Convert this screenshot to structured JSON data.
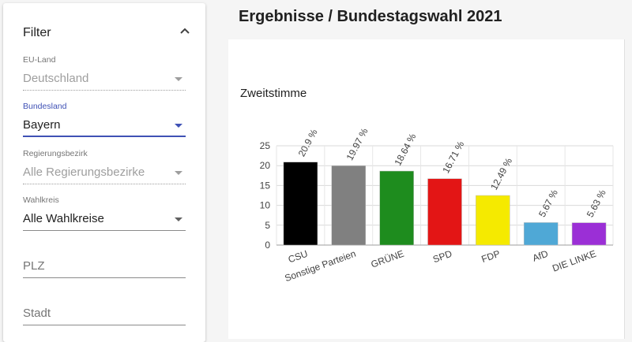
{
  "filter": {
    "title": "Filter",
    "fields": [
      {
        "label": "EU-Land",
        "value": "Deutschland",
        "state": "disabled"
      },
      {
        "label": "Bundesland",
        "value": "Bayern",
        "state": "focused"
      },
      {
        "label": "Regierungsbezirk",
        "value": "Alle Regierungsbezirke",
        "state": "disabled"
      },
      {
        "label": "Wahlkreis",
        "value": "Alle Wahlkreise",
        "state": "normal"
      },
      {
        "label": "",
        "value": "PLZ",
        "state": "text-input"
      },
      {
        "label": "",
        "value": "Stadt",
        "state": "text-input"
      }
    ]
  },
  "main": {
    "title": "Ergebnisse / Bundestagswahl 2021",
    "chart_subtitle": "Zweitstimme"
  },
  "colors": {
    "accent": "#3f51b5"
  },
  "icons": {
    "collapse": "chevron-up-icon",
    "dropdown": "dropdown-arrow-icon"
  },
  "chart_data": {
    "type": "bar",
    "title": "Zweitstimme",
    "categories": [
      "CSU",
      "Sonstige Parteien",
      "GRÜNE",
      "SPD",
      "FDP",
      "AfD",
      "DIE LINKE"
    ],
    "values": [
      20.9,
      19.97,
      18.64,
      16.71,
      12.49,
      5.67,
      5.63
    ],
    "value_labels": [
      "20.9 %",
      "19.97 %",
      "18.64 %",
      "16.71 %",
      "12.49 %",
      "5.67 %",
      "5.63 %"
    ],
    "colors": [
      "#000000",
      "#808080",
      "#1e8c1e",
      "#e31515",
      "#f5ea00",
      "#4fa8d6",
      "#9b2fd6"
    ],
    "ylim": [
      0,
      25
    ],
    "yticks": [
      0,
      5,
      10,
      15,
      20,
      25
    ],
    "grid": true,
    "legend": "none"
  }
}
